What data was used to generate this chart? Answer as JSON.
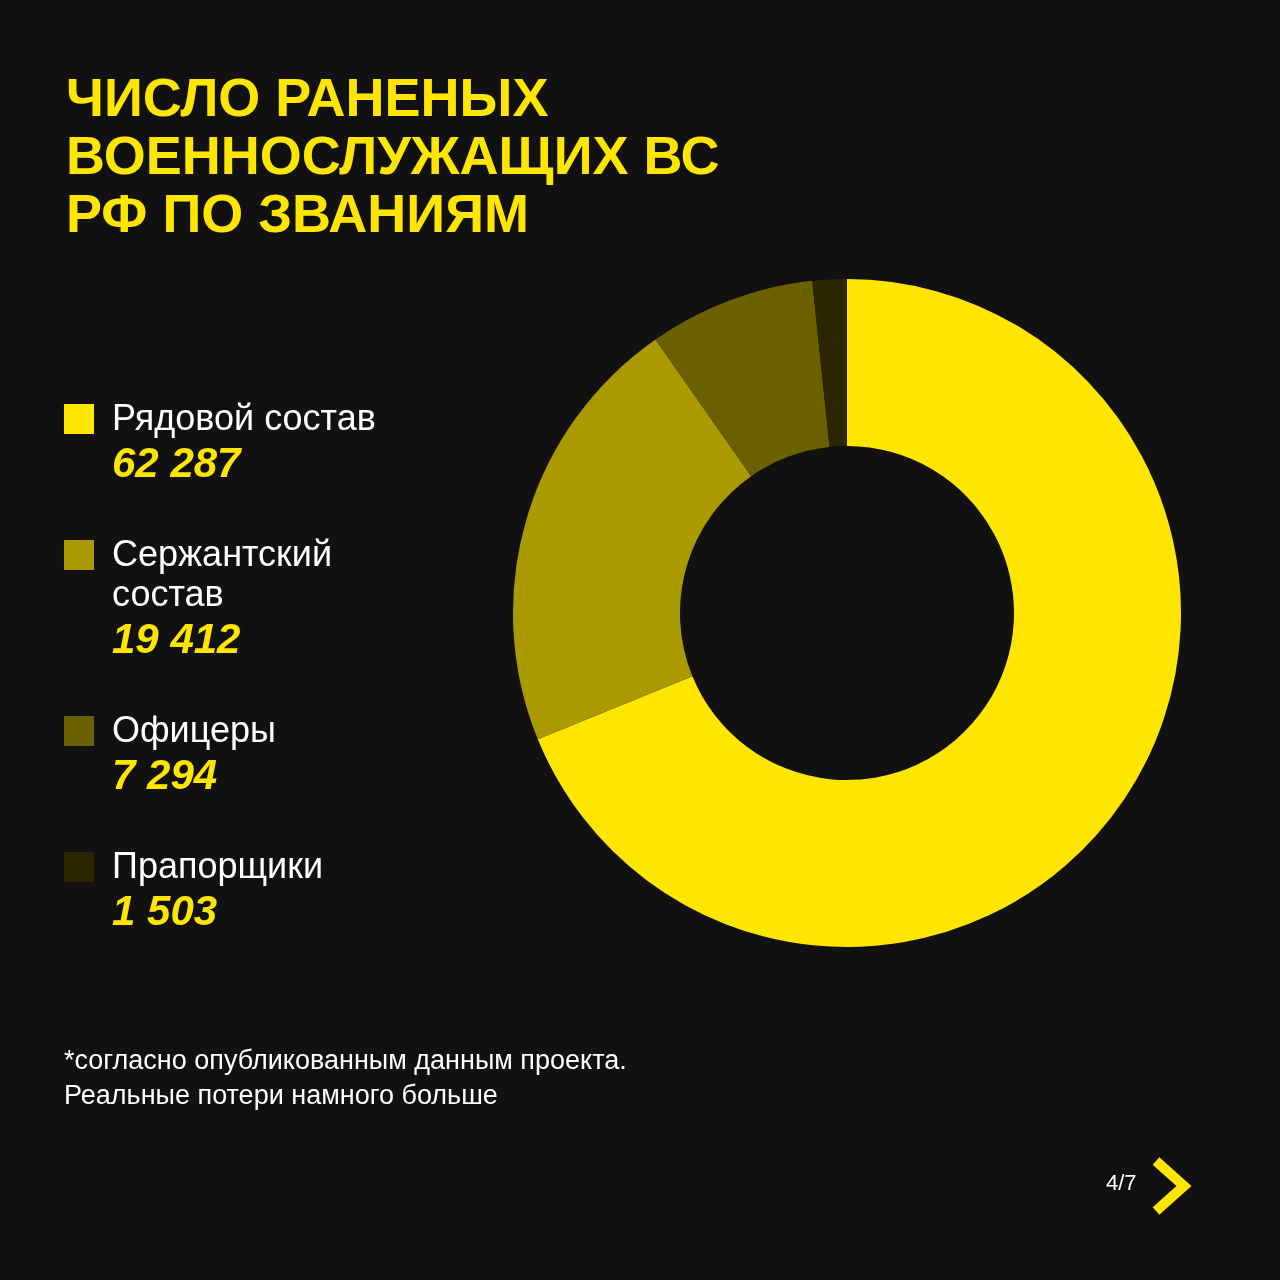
{
  "chart_data": {
    "type": "donut",
    "title": "ЧИСЛО РАНЕНЫХ ВОЕННОСЛУЖАЩИХ ВС РФ ПО ЗВАНИЯМ",
    "categories": [
      "Рядовой состав",
      "Сержантский состав",
      "Офицеры",
      "Прапорщики"
    ],
    "values": [
      62287,
      19412,
      7294,
      1503
    ],
    "colors": [
      "#ffe600",
      "#aa9900",
      "#6b6000",
      "#2b2600"
    ],
    "value_labels": [
      "62 287",
      "19 412",
      "7 294",
      "1 503"
    ],
    "legend": "left",
    "annotations": [
      "*согласно опубликованным данным проекта.",
      "Реальные потери намного больше",
      "4/7"
    ]
  }
}
